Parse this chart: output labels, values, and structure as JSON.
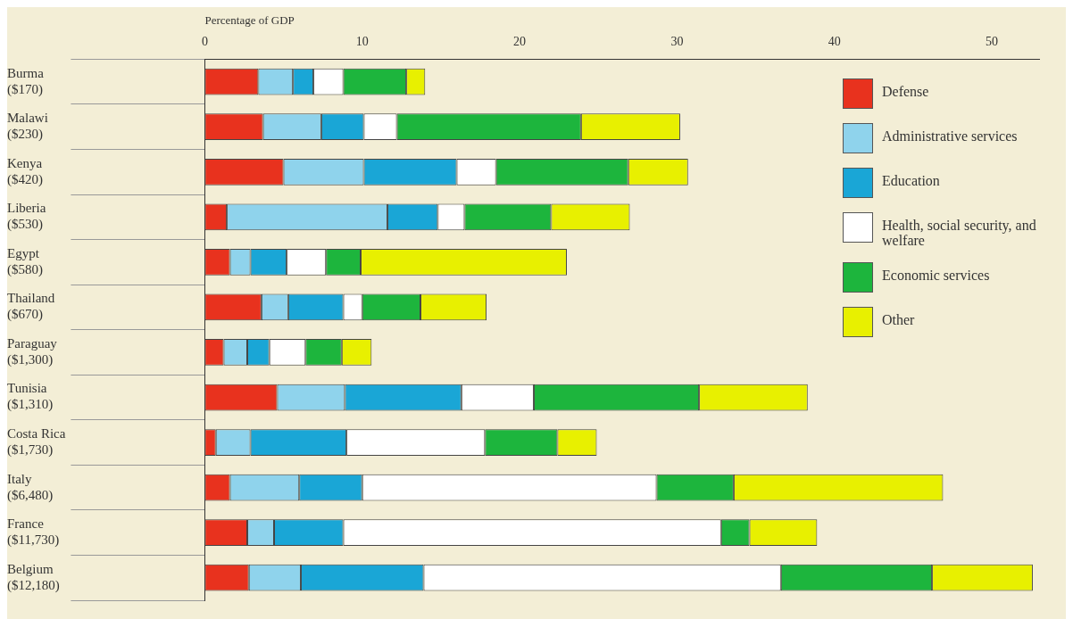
{
  "chart_data": {
    "type": "bar",
    "orientation": "horizontal",
    "stacked": true,
    "xlabel": "Percentage of GDP",
    "categories": [
      "Burma\n($170)",
      "Malawi\n($230)",
      "Kenya\n($420)",
      "Liberia\n($530)",
      "Egypt\n($580)",
      "Thailand\n($670)",
      "Paraguay\n($1,300)",
      "Tunisia\n($1,310)",
      "Costa Rica\n($1,730)",
      "Italy\n($6,480)",
      "France\n($11,730)",
      "Belgium\n($12,180)"
    ],
    "series": [
      {
        "name": "Defense",
        "color": "#e8321e",
        "values": [
          3.4,
          3.7,
          5.0,
          1.4,
          1.6,
          3.6,
          1.2,
          4.6,
          0.7,
          1.6,
          2.7,
          2.8
        ]
      },
      {
        "name": "Administrative services",
        "color": "#8fd3ec",
        "values": [
          2.2,
          3.7,
          5.1,
          10.2,
          1.3,
          1.7,
          1.5,
          4.3,
          2.2,
          4.4,
          1.7,
          3.3
        ]
      },
      {
        "name": "Education",
        "color": "#1aa6d6",
        "values": [
          1.3,
          2.7,
          5.9,
          3.2,
          2.3,
          3.5,
          1.4,
          7.4,
          6.1,
          4.0,
          4.4,
          7.8
        ]
      },
      {
        "name": "Health, social security, and welfare",
        "color": "#ffffff",
        "values": [
          1.9,
          2.1,
          2.5,
          1.7,
          2.5,
          1.2,
          2.3,
          4.6,
          8.8,
          18.7,
          24.0,
          22.7
        ]
      },
      {
        "name": "Economic services",
        "color": "#1db53d",
        "values": [
          4.0,
          11.7,
          8.4,
          5.5,
          2.2,
          3.7,
          2.3,
          10.5,
          4.6,
          4.9,
          1.8,
          9.6
        ]
      },
      {
        "name": "Other",
        "color": "#e8f000",
        "values": [
          1.2,
          6.3,
          3.8,
          5.0,
          13.1,
          4.2,
          1.9,
          6.9,
          2.5,
          13.3,
          4.3,
          6.4
        ]
      }
    ],
    "xlim": [
      0,
      53
    ],
    "xticks": [
      0,
      10,
      20,
      30,
      40,
      50
    ],
    "legend": "right"
  }
}
